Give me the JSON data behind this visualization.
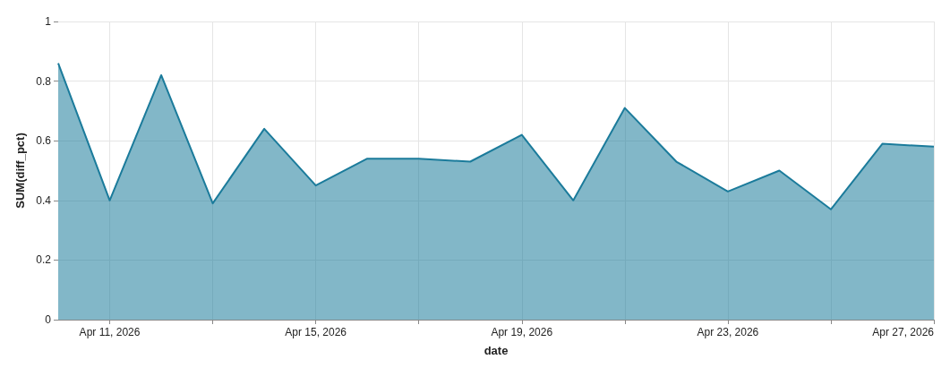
{
  "chart_data": {
    "type": "area",
    "xlabel": "date",
    "ylabel": "SUM(diff_pct)",
    "x": [
      "2026-04-10",
      "2026-04-11",
      "2026-04-12",
      "2026-04-13",
      "2026-04-14",
      "2026-04-15",
      "2026-04-16",
      "2026-04-17",
      "2026-04-18",
      "2026-04-19",
      "2026-04-20",
      "2026-04-21",
      "2026-04-22",
      "2026-04-23",
      "2026-04-24",
      "2026-04-25",
      "2026-04-26",
      "2026-04-27"
    ],
    "series": [
      {
        "color": "#1b7b9b",
        "values": [
          0.86,
          0.4,
          0.82,
          0.39,
          0.64,
          0.45,
          0.54,
          0.54,
          0.53,
          0.62,
          0.4,
          0.71,
          0.53,
          0.43,
          0.5,
          0.37,
          0.59,
          0.58
        ]
      }
    ],
    "xlim": [
      "2026-04-10",
      "2026-04-27"
    ],
    "xticks": [
      {
        "value": "2026-04-11",
        "label": "Apr 11, 2026"
      },
      {
        "value": "2026-04-13",
        "label": null
      },
      {
        "value": "2026-04-15",
        "label": "Apr 15, 2026"
      },
      {
        "value": "2026-04-17",
        "label": null
      },
      {
        "value": "2026-04-19",
        "label": "Apr 19, 2026"
      },
      {
        "value": "2026-04-21",
        "label": null
      },
      {
        "value": "2026-04-23",
        "label": "Apr 23, 2026"
      },
      {
        "value": "2026-04-25",
        "label": null
      },
      {
        "value": "2026-04-27",
        "label": "Apr 27, 2026"
      }
    ],
    "ylim": [
      0,
      1
    ],
    "yticks": [
      0,
      0.2,
      0.4,
      0.6,
      0.8,
      1
    ],
    "grid": true,
    "marker": "none",
    "line_style": "solid"
  }
}
